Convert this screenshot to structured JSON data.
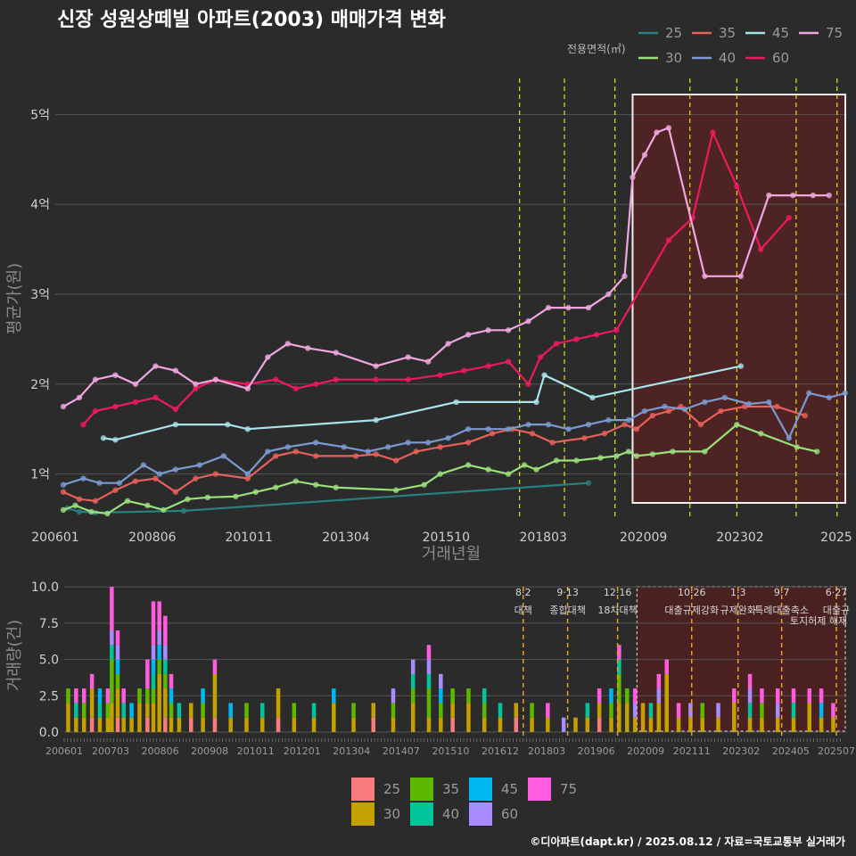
{
  "title": "신장 성원상떼빌 아파트(2003) 매매가격 변화",
  "credit": "©디아파트(dapt.kr) / 2025.08.12 / 자료=국토교통부 실거래가",
  "chart_data": [
    {
      "type": "line",
      "name": "price",
      "xlabel": "거래년월",
      "ylabel": "평균가(원)",
      "x_range": [
        2006.0,
        2025.75
      ],
      "ylim": [
        0.5,
        5.4
      ],
      "yticks": [
        1,
        2,
        3,
        4,
        5
      ],
      "ytick_labels": [
        "1억",
        "2억",
        "3억",
        "4억",
        "5억"
      ],
      "xticks": [
        2006.0,
        2008.42,
        2010.83,
        2013.25,
        2015.75,
        2018.17,
        2020.67,
        2023.08,
        2025.5
      ],
      "xtick_labels": [
        "200601",
        "200806",
        "201011",
        "201304",
        "201510",
        "201803",
        "202009",
        "202302",
        "2025"
      ],
      "legend_title": "전용면적(㎡)",
      "series": [
        {
          "name": "25",
          "color": "#2a7f7f",
          "x": [
            2006.3,
            2006.6,
            2007.0,
            2009.2,
            2019.3
          ],
          "y": [
            0.62,
            0.58,
            0.57,
            0.59,
            0.9
          ]
        },
        {
          "name": "30",
          "color": "#9be07c",
          "x": [
            2006.2,
            2006.5,
            2006.9,
            2007.3,
            2007.8,
            2008.3,
            2008.7,
            2009.3,
            2009.8,
            2010.5,
            2011.0,
            2011.5,
            2012.0,
            2012.5,
            2013.0,
            2014.5,
            2015.2,
            2015.6,
            2016.3,
            2016.8,
            2017.3,
            2017.7,
            2018.0,
            2018.5,
            2019.0,
            2019.6,
            2020.0,
            2020.3,
            2020.5,
            2020.9,
            2021.4,
            2022.2,
            2023.0,
            2023.6,
            2024.5,
            2025.0
          ],
          "y": [
            0.6,
            0.65,
            0.58,
            0.56,
            0.7,
            0.65,
            0.6,
            0.72,
            0.74,
            0.75,
            0.8,
            0.85,
            0.92,
            0.88,
            0.85,
            0.82,
            0.88,
            1.0,
            1.1,
            1.05,
            1.0,
            1.1,
            1.05,
            1.15,
            1.15,
            1.18,
            1.2,
            1.25,
            1.2,
            1.22,
            1.25,
            1.25,
            1.55,
            1.45,
            1.3,
            1.25
          ]
        },
        {
          "name": "35",
          "color": "#e8605a",
          "x": [
            2006.2,
            2006.6,
            2007.0,
            2007.5,
            2008.0,
            2008.5,
            2009.0,
            2009.5,
            2010.0,
            2010.8,
            2011.5,
            2012.0,
            2012.5,
            2013.5,
            2014.0,
            2014.5,
            2015.0,
            2015.6,
            2016.3,
            2016.9,
            2017.4,
            2017.9,
            2018.4,
            2019.2,
            2019.7,
            2020.2,
            2020.5,
            2020.9,
            2021.3,
            2021.6,
            2022.1,
            2022.6,
            2023.2,
            2024.0,
            2024.7
          ],
          "y": [
            0.8,
            0.72,
            0.7,
            0.82,
            0.92,
            0.95,
            0.8,
            0.95,
            1.0,
            0.95,
            1.2,
            1.25,
            1.2,
            1.2,
            1.22,
            1.15,
            1.25,
            1.3,
            1.35,
            1.45,
            1.5,
            1.45,
            1.35,
            1.4,
            1.45,
            1.55,
            1.5,
            1.65,
            1.7,
            1.75,
            1.55,
            1.7,
            1.75,
            1.75,
            1.65
          ]
        },
        {
          "name": "40",
          "color": "#7a9ad0",
          "x": [
            2006.2,
            2006.7,
            2007.1,
            2007.6,
            2008.2,
            2008.6,
            2009.0,
            2009.6,
            2010.2,
            2010.8,
            2011.3,
            2011.8,
            2012.5,
            2013.2,
            2013.8,
            2014.3,
            2014.8,
            2015.3,
            2015.8,
            2016.3,
            2016.8,
            2017.3,
            2017.8,
            2018.3,
            2018.8,
            2019.3,
            2019.8,
            2020.3,
            2020.7,
            2021.2,
            2021.7,
            2022.2,
            2022.7,
            2023.3,
            2023.8,
            2024.3,
            2024.8,
            2025.3,
            2025.7
          ],
          "y": [
            0.88,
            0.95,
            0.9,
            0.9,
            1.1,
            1.0,
            1.05,
            1.1,
            1.2,
            1.0,
            1.25,
            1.3,
            1.35,
            1.3,
            1.25,
            1.3,
            1.35,
            1.35,
            1.4,
            1.5,
            1.5,
            1.5,
            1.55,
            1.55,
            1.5,
            1.55,
            1.6,
            1.6,
            1.7,
            1.75,
            1.72,
            1.8,
            1.85,
            1.78,
            1.8,
            1.4,
            1.9,
            1.85,
            1.9
          ]
        },
        {
          "name": "45",
          "color": "#a8e4ea",
          "x": [
            2007.2,
            2007.5,
            2009.0,
            2010.3,
            2010.8,
            2014.0,
            2016.0,
            2018.0,
            2018.2,
            2019.4,
            2023.1
          ],
          "y": [
            1.4,
            1.38,
            1.55,
            1.55,
            1.5,
            1.6,
            1.8,
            1.8,
            2.1,
            1.85,
            2.2
          ]
        },
        {
          "name": "60",
          "color": "#f0195e",
          "x": [
            2006.7,
            2007.0,
            2007.5,
            2008.0,
            2008.5,
            2009.0,
            2009.5,
            2010.0,
            2010.8,
            2011.5,
            2012.0,
            2012.5,
            2013.0,
            2014.0,
            2014.8,
            2015.6,
            2016.2,
            2016.8,
            2017.3,
            2017.8,
            2018.1,
            2018.5,
            2019.0,
            2019.5,
            2020.0,
            2021.3,
            2021.9,
            2022.4,
            2023.0,
            2023.6,
            2024.3
          ],
          "y": [
            1.55,
            1.7,
            1.75,
            1.8,
            1.85,
            1.72,
            1.95,
            2.05,
            2.0,
            2.05,
            1.95,
            2.0,
            2.05,
            2.05,
            2.05,
            2.1,
            2.15,
            2.2,
            2.25,
            2.0,
            2.3,
            2.45,
            2.5,
            2.55,
            2.6,
            3.6,
            3.85,
            4.8,
            4.2,
            3.5,
            3.85
          ]
        },
        {
          "name": "75",
          "color": "#f0a6e0",
          "x": [
            2006.2,
            2006.6,
            2007.0,
            2007.5,
            2008.0,
            2008.5,
            2009.0,
            2009.5,
            2010.0,
            2010.8,
            2011.3,
            2011.8,
            2012.3,
            2013.0,
            2014.0,
            2014.8,
            2015.3,
            2015.8,
            2016.3,
            2016.8,
            2017.3,
            2017.8,
            2018.3,
            2018.8,
            2019.3,
            2019.8,
            2020.2,
            2020.4,
            2020.7,
            2021.0,
            2021.3,
            2022.2,
            2023.1,
            2023.8,
            2024.4,
            2024.9,
            2025.3
          ],
          "y": [
            1.75,
            1.85,
            2.05,
            2.1,
            2.0,
            2.2,
            2.15,
            2.0,
            2.05,
            1.95,
            2.3,
            2.45,
            2.4,
            2.35,
            2.2,
            2.3,
            2.25,
            2.45,
            2.55,
            2.6,
            2.6,
            2.7,
            2.85,
            2.85,
            2.85,
            3.0,
            3.2,
            4.3,
            4.55,
            4.8,
            4.85,
            3.2,
            3.2,
            4.1,
            4.1,
            4.1,
            4.1
          ]
        }
      ],
      "policy_lines": [
        2017.58,
        2018.7,
        2019.96,
        2021.83,
        2023.0,
        2024.48,
        2025.5
      ],
      "highlight_range": [
        2020.4,
        2025.75
      ]
    },
    {
      "type": "bar",
      "name": "volume",
      "ylabel": "거래량(건)",
      "ylim": [
        0,
        10.5
      ],
      "yticks": [
        0.0,
        2.5,
        5.0,
        7.5,
        10.0
      ],
      "ytick_labels": [
        "0.0",
        "2.5",
        "5.0",
        "7.5",
        "10.0"
      ],
      "x_range": [
        2006.0,
        2025.75
      ],
      "xticks": [
        2006.0,
        2007.17,
        2008.42,
        2009.67,
        2010.83,
        2012.0,
        2013.25,
        2014.5,
        2015.75,
        2017.0,
        2018.17,
        2019.42,
        2020.67,
        2021.83,
        2023.08,
        2024.33,
        2025.5
      ],
      "xtick_labels": [
        "200601",
        "200703",
        "200806",
        "200908",
        "201011",
        "201201",
        "201304",
        "201407",
        "201510",
        "201612",
        "201803",
        "201906",
        "202009",
        "202111",
        "202302",
        "202405",
        "202507"
      ],
      "legend": [
        "25",
        "30",
        "35",
        "40",
        "45",
        "60",
        "75"
      ],
      "legend_colors": [
        "#f87c7c",
        "#c4a000",
        "#5db800",
        "#00c49a",
        "#00b8f0",
        "#a88cff",
        "#ff5ce0"
      ],
      "stacks": [
        [
          2006.1,
          0,
          2,
          1,
          0,
          0,
          0,
          0
        ],
        [
          2006.3,
          0,
          1,
          0,
          1,
          0,
          0,
          1
        ],
        [
          2006.5,
          0,
          1,
          1,
          0,
          0,
          0,
          1
        ],
        [
          2006.7,
          1,
          2,
          0,
          0,
          0,
          0,
          1
        ],
        [
          2006.9,
          0,
          1,
          0,
          1,
          1,
          0,
          0
        ],
        [
          2007.1,
          0,
          1,
          1,
          0,
          0,
          0,
          1
        ],
        [
          2007.2,
          0,
          2,
          3,
          1,
          0,
          1,
          3
        ],
        [
          2007.35,
          1,
          2,
          1,
          0,
          1,
          1,
          1
        ],
        [
          2007.5,
          0,
          1,
          0,
          1,
          0,
          0,
          1
        ],
        [
          2007.7,
          0,
          1,
          0,
          0,
          1,
          0,
          0
        ],
        [
          2007.9,
          0,
          2,
          1,
          0,
          0,
          0,
          0
        ],
        [
          2008.1,
          1,
          1,
          1,
          0,
          0,
          0,
          2
        ],
        [
          2008.25,
          0,
          2,
          1,
          1,
          1,
          1,
          3
        ],
        [
          2008.4,
          0,
          4,
          1,
          0,
          1,
          1,
          2
        ],
        [
          2008.55,
          1,
          2,
          1,
          1,
          0,
          1,
          2
        ],
        [
          2008.7,
          0,
          1,
          1,
          0,
          1,
          0,
          1
        ],
        [
          2008.9,
          0,
          1,
          0,
          1,
          0,
          0,
          0
        ],
        [
          2009.2,
          1,
          1,
          0,
          0,
          0,
          0,
          0
        ],
        [
          2009.5,
          0,
          1,
          1,
          0,
          1,
          0,
          0
        ],
        [
          2009.8,
          1,
          3,
          0,
          0,
          0,
          0,
          1
        ],
        [
          2010.2,
          0,
          1,
          0,
          0,
          1,
          0,
          0
        ],
        [
          2010.6,
          0,
          1,
          1,
          0,
          0,
          0,
          0
        ],
        [
          2011.0,
          0,
          1,
          0,
          1,
          0,
          0,
          0
        ],
        [
          2011.4,
          1,
          2,
          0,
          0,
          0,
          0,
          0
        ],
        [
          2011.8,
          0,
          1,
          1,
          0,
          0,
          0,
          0
        ],
        [
          2012.3,
          0,
          1,
          0,
          1,
          0,
          0,
          0
        ],
        [
          2012.8,
          0,
          2,
          0,
          0,
          1,
          0,
          0
        ],
        [
          2013.3,
          0,
          1,
          1,
          0,
          0,
          0,
          0
        ],
        [
          2013.8,
          1,
          1,
          0,
          0,
          0,
          0,
          0
        ],
        [
          2014.3,
          0,
          1,
          1,
          0,
          0,
          1,
          0
        ],
        [
          2014.8,
          0,
          2,
          1,
          1,
          0,
          1,
          0
        ],
        [
          2015.2,
          0,
          1,
          2,
          1,
          0,
          1,
          1
        ],
        [
          2015.5,
          0,
          1,
          1,
          0,
          1,
          1,
          0
        ],
        [
          2015.8,
          1,
          1,
          1,
          0,
          0,
          0,
          0
        ],
        [
          2016.2,
          0,
          2,
          1,
          0,
          0,
          0,
          0
        ],
        [
          2016.6,
          0,
          1,
          1,
          1,
          0,
          0,
          0
        ],
        [
          2017.0,
          0,
          1,
          0,
          1,
          0,
          0,
          0
        ],
        [
          2017.4,
          1,
          1,
          0,
          0,
          0,
          0,
          0
        ],
        [
          2017.8,
          0,
          1,
          1,
          0,
          0,
          0,
          0
        ],
        [
          2018.2,
          0,
          1,
          0,
          0,
          0,
          0,
          1
        ],
        [
          2018.6,
          0,
          0,
          0,
          0,
          0,
          1,
          0
        ],
        [
          2018.9,
          0,
          1,
          0,
          0,
          0,
          0,
          0
        ],
        [
          2019.2,
          0,
          1,
          0,
          1,
          0,
          0,
          0
        ],
        [
          2019.5,
          1,
          1,
          0,
          0,
          0,
          0,
          1
        ],
        [
          2019.8,
          0,
          1,
          1,
          0,
          1,
          0,
          0
        ],
        [
          2020.0,
          0,
          2,
          2,
          1,
          0,
          0,
          1
        ],
        [
          2020.2,
          0,
          2,
          1,
          0,
          0,
          0,
          0
        ],
        [
          2020.4,
          0,
          1,
          0,
          0,
          0,
          1,
          1
        ],
        [
          2020.6,
          0,
          2,
          0,
          0,
          0,
          0,
          0
        ],
        [
          2020.8,
          0,
          1,
          0,
          1,
          0,
          0,
          0
        ],
        [
          2021.0,
          0,
          2,
          0,
          0,
          0,
          1,
          1
        ],
        [
          2021.2,
          0,
          4,
          0,
          0,
          0,
          0,
          1
        ],
        [
          2021.5,
          0,
          1,
          0,
          0,
          0,
          0,
          1
        ],
        [
          2021.8,
          0,
          1,
          0,
          0,
          0,
          1,
          0
        ],
        [
          2022.1,
          0,
          1,
          1,
          0,
          0,
          0,
          0
        ],
        [
          2022.5,
          0,
          1,
          0,
          0,
          0,
          1,
          0
        ],
        [
          2022.9,
          0,
          2,
          0,
          0,
          0,
          0,
          1
        ],
        [
          2023.3,
          0,
          1,
          0,
          1,
          0,
          1,
          1
        ],
        [
          2023.6,
          0,
          1,
          1,
          0,
          0,
          0,
          1
        ],
        [
          2024.0,
          0,
          1,
          0,
          0,
          0,
          1,
          1
        ],
        [
          2024.4,
          0,
          1,
          0,
          1,
          0,
          0,
          1
        ],
        [
          2024.8,
          0,
          2,
          0,
          0,
          0,
          0,
          1
        ],
        [
          2025.1,
          0,
          1,
          0,
          0,
          1,
          0,
          1
        ],
        [
          2025.4,
          0,
          1,
          0,
          0,
          0,
          0,
          1
        ]
      ],
      "annotations": [
        {
          "x": 2017.58,
          "date": "8·2",
          "text": "대책",
          "line": ""
        },
        {
          "x": 2018.7,
          "date": "9·13",
          "text": "종합대책",
          "line": ""
        },
        {
          "x": 2019.96,
          "date": "12·16",
          "text": "18차대책",
          "line": ""
        },
        {
          "x": 2021.83,
          "date": "10·26",
          "text": "대출규제강화",
          "line": ""
        },
        {
          "x": 2023.0,
          "date": "1·3",
          "text": "규제완화",
          "line": ""
        },
        {
          "x": 2024.1,
          "date": "9·7",
          "text": "특례대출축소",
          "line": ""
        },
        {
          "x": 2025.48,
          "date": "6·27",
          "text": "대출규",
          "line": "토지허제 해제"
        }
      ]
    }
  ]
}
